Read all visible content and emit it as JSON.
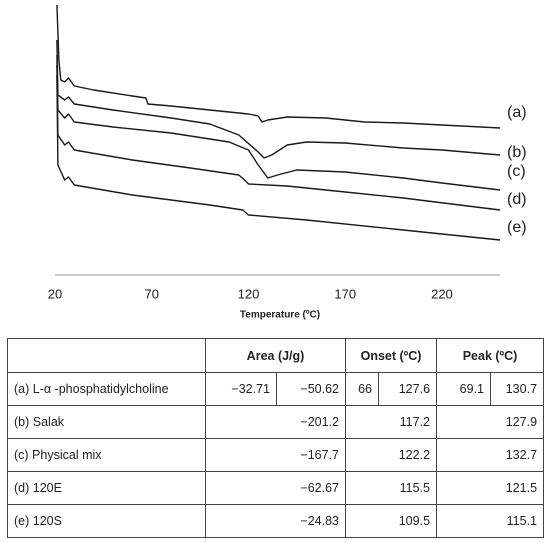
{
  "chart_data": {
    "type": "line",
    "x_label": "Temperature (ºC)",
    "xlim": [
      20,
      250
    ],
    "xticks": [
      20,
      70,
      120,
      170,
      220
    ],
    "ylim": [
      0,
      270
    ],
    "series": [
      {
        "name": "(a)",
        "color": "#1a1a1a",
        "x": [
          21,
          22,
          23,
          25,
          27,
          30,
          40,
          60,
          67,
          68,
          80,
          100,
          120,
          125,
          127,
          130,
          140,
          160,
          170,
          180,
          200,
          220,
          250
        ],
        "values": [
          270,
          215,
          195,
          193,
          197,
          189,
          185,
          179,
          177,
          171,
          169,
          165,
          161,
          159,
          153,
          155,
          158,
          157,
          155,
          153,
          152,
          150,
          147
        ]
      },
      {
        "name": "(b)",
        "color": "#1a1a1a",
        "x": [
          21,
          21.5,
          25,
          27,
          30,
          50,
          80,
          100,
          115,
          125,
          128,
          132,
          140,
          150,
          170,
          200,
          220,
          250
        ],
        "values": [
          235,
          180,
          175,
          178,
          171,
          165,
          157,
          151,
          140,
          123,
          117,
          120,
          130,
          133,
          132,
          127,
          125,
          120
        ]
      },
      {
        "name": "(c)",
        "color": "#1a1a1a",
        "x": [
          21,
          21.5,
          25,
          27,
          30,
          50,
          80,
          110,
          120,
          125,
          130,
          135,
          145,
          170,
          200,
          220,
          250
        ],
        "values": [
          220,
          165,
          157,
          161,
          153,
          148,
          142,
          133,
          125,
          110,
          97,
          100,
          105,
          103,
          97,
          92,
          85
        ]
      },
      {
        "name": "(d)",
        "color": "#1a1a1a",
        "x": [
          21,
          21.5,
          25,
          27,
          30,
          60,
          90,
          115,
          118,
          120,
          140,
          170,
          200,
          250
        ],
        "values": [
          210,
          140,
          130,
          133,
          125,
          115,
          107,
          100,
          95,
          91,
          89,
          83,
          77,
          65
        ]
      },
      {
        "name": "(e)",
        "color": "#1a1a1a",
        "x": [
          21,
          21.5,
          25,
          27,
          30,
          60,
          100,
          117,
          120,
          150,
          200,
          250
        ],
        "values": [
          200,
          110,
          95,
          98,
          90,
          80,
          70,
          65,
          60,
          55,
          45,
          35
        ]
      }
    ]
  },
  "table": {
    "header": [
      "Area (J/g)",
      "Onset (ºC)",
      "Peak (ºC)"
    ],
    "rows": [
      [
        "(a) L-α -phosphatidylcholine",
        "−32.71",
        "−50.62",
        "66",
        "127.6",
        "69.1",
        "130.7"
      ],
      [
        "(b) Salak",
        "−201.2",
        "117.2",
        "127.9"
      ],
      [
        "(c) Physical mix",
        "−167.7",
        "122.2",
        "132.7"
      ],
      [
        "(d) 120E",
        "−62.67",
        "115.5",
        "121.5"
      ],
      [
        "(e) 120S",
        "−24.83",
        "109.5",
        "115.1"
      ]
    ]
  }
}
